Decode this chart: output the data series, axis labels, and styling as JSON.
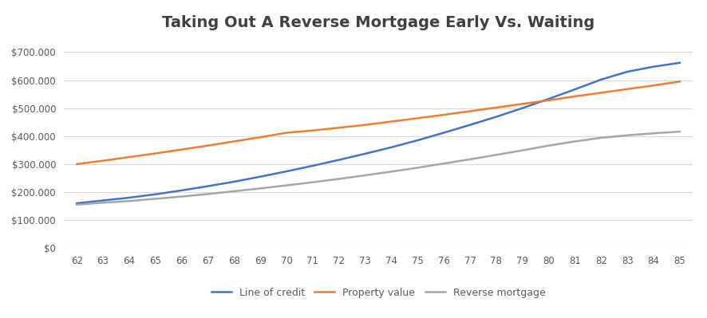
{
  "title": "Taking Out A Reverse Mortgage Early Vs. Waiting",
  "x_values": [
    62,
    63,
    64,
    65,
    66,
    67,
    68,
    69,
    70,
    71,
    72,
    73,
    74,
    75,
    76,
    77,
    78,
    79,
    80,
    81,
    82,
    83,
    84,
    85
  ],
  "line_of_credit": [
    160000,
    170000,
    180000,
    192000,
    206000,
    221000,
    237000,
    255000,
    274000,
    294000,
    315000,
    337000,
    360000,
    385000,
    412000,
    440000,
    469000,
    500000,
    533000,
    567000,
    602000,
    630000,
    648000,
    662000
  ],
  "property_value": [
    300000,
    312000,
    325000,
    338000,
    352000,
    366000,
    381000,
    396000,
    412000,
    420000,
    430000,
    440000,
    452000,
    464000,
    476000,
    489000,
    502000,
    515000,
    528000,
    542000,
    555000,
    568000,
    581000,
    595000
  ],
  "reverse_mortgage": [
    155000,
    162000,
    168000,
    176000,
    184000,
    193000,
    203000,
    213000,
    224000,
    235000,
    247000,
    260000,
    273000,
    287000,
    302000,
    317000,
    333000,
    349000,
    366000,
    381000,
    394000,
    403000,
    410000,
    416000
  ],
  "line_of_credit_color": "#4472C4",
  "property_value_color": "#ED7D31",
  "reverse_mortgage_color": "#A5A5A5",
  "background_color": "#FFFFFF",
  "grid_color": "#D9D9D9",
  "title_fontsize": 14,
  "title_color": "#404040",
  "ylim": [
    0,
    750000
  ],
  "ytick_step": 100000,
  "legend_labels": [
    "Line of credit",
    "Property value",
    "Reverse mortgage"
  ]
}
